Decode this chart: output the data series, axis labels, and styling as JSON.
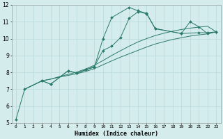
{
  "xlabel": "Humidex (Indice chaleur)",
  "background_color": "#d4ecec",
  "line_color": "#2a7a6a",
  "grid_color": "#b8d8d8",
  "xlim": [
    -0.5,
    23.5
  ],
  "ylim": [
    5,
    12
  ],
  "xticks": [
    0,
    1,
    2,
    3,
    4,
    5,
    6,
    7,
    8,
    9,
    10,
    11,
    12,
    13,
    14,
    15,
    16,
    17,
    18,
    19,
    20,
    21,
    22,
    23
  ],
  "yticks": [
    5,
    6,
    7,
    8,
    9,
    10,
    11,
    12
  ],
  "figsize": [
    3.2,
    2.0
  ],
  "dpi": 100,
  "line_width": 0.7,
  "marker_size": 2.0,
  "series_marked_1": {
    "x": [
      0,
      1,
      3,
      4,
      6,
      7,
      8,
      9,
      10,
      11,
      13,
      14,
      15,
      16,
      19,
      21,
      22,
      23
    ],
    "y": [
      5.2,
      7.0,
      7.5,
      7.3,
      8.1,
      7.95,
      8.15,
      8.3,
      10.0,
      11.25,
      11.85,
      11.65,
      11.5,
      10.6,
      10.3,
      10.35,
      10.35,
      10.4
    ]
  },
  "series_smooth_1": {
    "x": [
      1,
      3,
      4,
      5,
      6,
      7,
      8,
      9,
      10,
      11,
      12,
      13,
      14,
      15,
      16,
      17,
      18,
      19,
      20,
      21,
      22,
      23
    ],
    "y": [
      7.0,
      7.5,
      7.6,
      7.72,
      7.82,
      7.92,
      8.05,
      8.22,
      8.45,
      8.68,
      8.9,
      9.1,
      9.3,
      9.5,
      9.68,
      9.82,
      9.95,
      10.05,
      10.15,
      10.22,
      10.28,
      10.4
    ]
  },
  "series_smooth_2": {
    "x": [
      1,
      3,
      4,
      5,
      6,
      7,
      8,
      9,
      10,
      11,
      12,
      13,
      14,
      15,
      16,
      17,
      18,
      19,
      20,
      21,
      22,
      23
    ],
    "y": [
      7.0,
      7.5,
      7.6,
      7.75,
      7.88,
      8.02,
      8.2,
      8.42,
      8.7,
      9.0,
      9.28,
      9.55,
      9.8,
      10.0,
      10.18,
      10.32,
      10.44,
      10.54,
      10.62,
      10.68,
      10.73,
      10.4
    ]
  },
  "series_marked_2": {
    "x": [
      3,
      4,
      6,
      7,
      8,
      9,
      10,
      11,
      12,
      13,
      14,
      15,
      16,
      19,
      20,
      21,
      22,
      23
    ],
    "y": [
      7.5,
      7.3,
      8.1,
      7.95,
      8.15,
      8.35,
      9.3,
      9.55,
      10.05,
      11.2,
      11.58,
      11.48,
      10.58,
      10.3,
      11.0,
      10.7,
      10.3,
      10.4
    ]
  }
}
